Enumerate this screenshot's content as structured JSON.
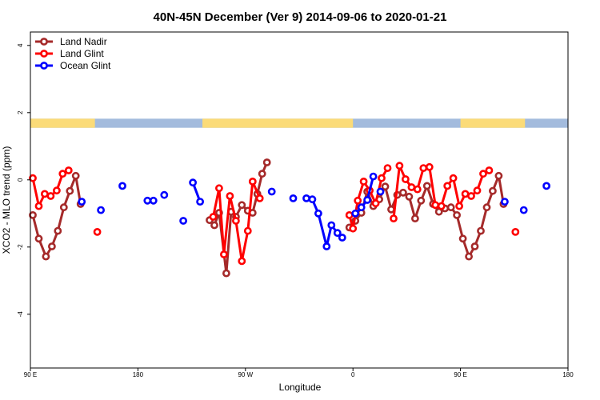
{
  "chart_data": {
    "type": "line",
    "title": "40N-45N December (Ver 9)   2014-09-06 to 2020-01-21",
    "xlabel": "Longitude",
    "ylabel": "XCO2 - MLO trend (ppm)",
    "xlim": [
      90,
      540
    ],
    "ylim": [
      -5.6,
      4.4
    ],
    "x_ticks": [
      {
        "value": 90,
        "label": "90 E"
      },
      {
        "value": 180,
        "label": "180"
      },
      {
        "value": 270,
        "label": "90 W"
      },
      {
        "value": 360,
        "label": "0"
      },
      {
        "value": 450,
        "label": "90 E"
      },
      {
        "value": 540,
        "label": "180"
      }
    ],
    "y_ticks": [
      {
        "value": 4,
        "label": "4"
      },
      {
        "value": 2,
        "label": "2"
      },
      {
        "value": 0,
        "label": "0"
      },
      {
        "value": -2,
        "label": "-2"
      },
      {
        "value": -4,
        "label": "-4"
      }
    ],
    "land_ocean_bar": {
      "y_range": [
        1.55,
        1.82
      ],
      "ocean_color": "#a3bbdd",
      "land_color": "#fbdb78",
      "land_segments": [
        [
          90,
          144
        ],
        [
          234,
          360
        ],
        [
          450,
          504
        ]
      ]
    },
    "legend": {
      "position": "top-left"
    },
    "series": [
      {
        "name": "Land Nadir",
        "color": "#a52a2a",
        "segments": [
          [
            [
              92,
              -1.05
            ],
            [
              97,
              -1.75
            ],
            [
              103,
              -2.28
            ],
            [
              108,
              -1.98
            ],
            [
              113,
              -1.52
            ],
            [
              118,
              -0.82
            ],
            [
              123,
              -0.33
            ],
            [
              128,
              0.12
            ],
            [
              132,
              -0.72
            ]
          ],
          [
            [
              240,
              -1.2
            ],
            [
              244,
              -1.35
            ],
            [
              248,
              -0.98
            ],
            [
              254,
              -2.78
            ],
            [
              258,
              -0.95
            ],
            [
              262,
              -1.1
            ],
            [
              267,
              -0.75
            ],
            [
              272,
              -0.92
            ],
            [
              276,
              -0.98
            ],
            [
              280,
              -0.42
            ],
            [
              284,
              0.18
            ],
            [
              288,
              0.52
            ]
          ],
          [
            [
              357,
              -1.42
            ],
            [
              362,
              -1.22
            ],
            [
              367,
              -0.98
            ],
            [
              372,
              -0.35
            ],
            [
              377,
              -0.78
            ],
            [
              382,
              -0.58
            ],
            [
              387,
              -0.2
            ],
            [
              392,
              -0.88
            ],
            [
              397,
              -0.45
            ],
            [
              402,
              -0.38
            ],
            [
              407,
              -0.5
            ],
            [
              412,
              -1.15
            ],
            [
              417,
              -0.62
            ],
            [
              422,
              -0.18
            ],
            [
              427,
              -0.72
            ],
            [
              432,
              -0.95
            ],
            [
              437,
              -0.85
            ],
            [
              442,
              -0.82
            ],
            [
              447,
              -1.05
            ],
            [
              452,
              -1.75
            ],
            [
              457,
              -2.28
            ],
            [
              462,
              -1.98
            ],
            [
              467,
              -1.52
            ],
            [
              472,
              -0.82
            ],
            [
              477,
              -0.33
            ],
            [
              482,
              0.12
            ],
            [
              486,
              -0.72
            ]
          ]
        ]
      },
      {
        "name": "Land Glint",
        "color": "#ff0000",
        "segments": [
          [
            [
              92,
              0.05
            ],
            [
              97,
              -0.78
            ],
            [
              102,
              -0.42
            ],
            [
              107,
              -0.48
            ],
            [
              112,
              -0.32
            ],
            [
              117,
              0.18
            ],
            [
              122,
              0.28
            ]
          ],
          [
            [
              146,
              -1.55
            ]
          ],
          [
            [
              243,
              -1.1
            ],
            [
              248,
              -0.25
            ],
            [
              252,
              -2.22
            ],
            [
              257,
              -0.48
            ],
            [
              262,
              -1.22
            ],
            [
              267,
              -2.42
            ],
            [
              272,
              -1.52
            ],
            [
              276,
              -0.05
            ],
            [
              282,
              -0.55
            ]
          ],
          [
            [
              357,
              -1.05
            ],
            [
              360,
              -1.45
            ],
            [
              364,
              -0.62
            ],
            [
              369,
              -0.05
            ],
            [
              374,
              -0.32
            ],
            [
              379,
              -0.7
            ],
            [
              384,
              0.05
            ],
            [
              389,
              0.35
            ]
          ],
          [
            [
              394,
              -1.15
            ],
            [
              399,
              0.42
            ],
            [
              404,
              0.02
            ],
            [
              409,
              -0.22
            ],
            [
              414,
              -0.28
            ],
            [
              419,
              0.35
            ],
            [
              424,
              0.38
            ],
            [
              429,
              -0.75
            ],
            [
              434,
              -0.78
            ],
            [
              439,
              -0.18
            ],
            [
              444,
              0.05
            ],
            [
              449,
              -0.78
            ],
            [
              454,
              -0.42
            ],
            [
              459,
              -0.48
            ],
            [
              464,
              -0.32
            ],
            [
              469,
              0.18
            ],
            [
              474,
              0.28
            ]
          ],
          [
            [
              496,
              -1.55
            ]
          ]
        ]
      },
      {
        "name": "Ocean Glint",
        "color": "#0000ff",
        "segments": [
          [
            [
              133,
              -0.65
            ]
          ],
          [
            [
              149,
              -0.9
            ]
          ],
          [
            [
              167,
              -0.18
            ]
          ],
          [
            [
              188,
              -0.62
            ],
            [
              193,
              -0.62
            ]
          ],
          [
            [
              202,
              -0.45
            ]
          ],
          [
            [
              218,
              -1.22
            ]
          ],
          [
            [
              226,
              -0.08
            ],
            [
              232,
              -0.65
            ]
          ],
          [
            [
              292,
              -0.35
            ]
          ],
          [
            [
              310,
              -0.55
            ]
          ],
          [
            [
              321,
              -0.55
            ],
            [
              326,
              -0.58
            ],
            [
              331,
              -1.0
            ],
            [
              338,
              -1.98
            ],
            [
              342,
              -1.35
            ],
            [
              347,
              -1.58
            ],
            [
              351,
              -1.72
            ]
          ],
          [
            [
              362,
              -1.0
            ],
            [
              367,
              -0.82
            ],
            [
              372,
              -0.6
            ],
            [
              377,
              0.1
            ]
          ],
          [
            [
              383,
              -0.35
            ]
          ],
          [
            [
              487,
              -0.65
            ]
          ],
          [
            [
              503,
              -0.9
            ]
          ],
          [
            [
              522,
              -0.18
            ]
          ]
        ]
      }
    ]
  }
}
